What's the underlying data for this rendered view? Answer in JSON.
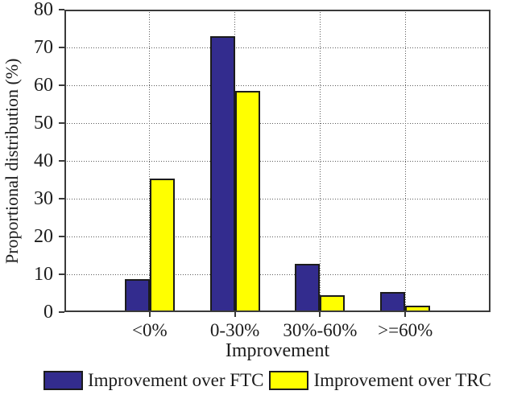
{
  "chart_data": {
    "type": "bar",
    "title": "",
    "categories": [
      "<0%",
      "0-30%",
      "30%-60%",
      ">=60%"
    ],
    "series": [
      {
        "name": "Improvement over FTC",
        "color": "#332C8E",
        "values": [
          8.8,
          72.9,
          12.8,
          5.4
        ]
      },
      {
        "name": "Improvement over TRC",
        "color": "#FFFF00",
        "values": [
          35.3,
          58.6,
          4.4,
          1.7
        ]
      }
    ],
    "xlabel": "Improvement",
    "ylabel": "Proportional distribution (%)",
    "ylim": [
      0,
      80
    ],
    "yticks": [
      0,
      10,
      20,
      30,
      40,
      50,
      60,
      70,
      80
    ],
    "grid": "dotted horizontal and vertical gridlines",
    "legend_position": "bottom"
  },
  "colors": {
    "axis": "#3a3a3a",
    "bar_border": "#1c1c1c",
    "grid": "#5a5a5a",
    "text": "#1c1c1c",
    "background": "#ffffff"
  }
}
